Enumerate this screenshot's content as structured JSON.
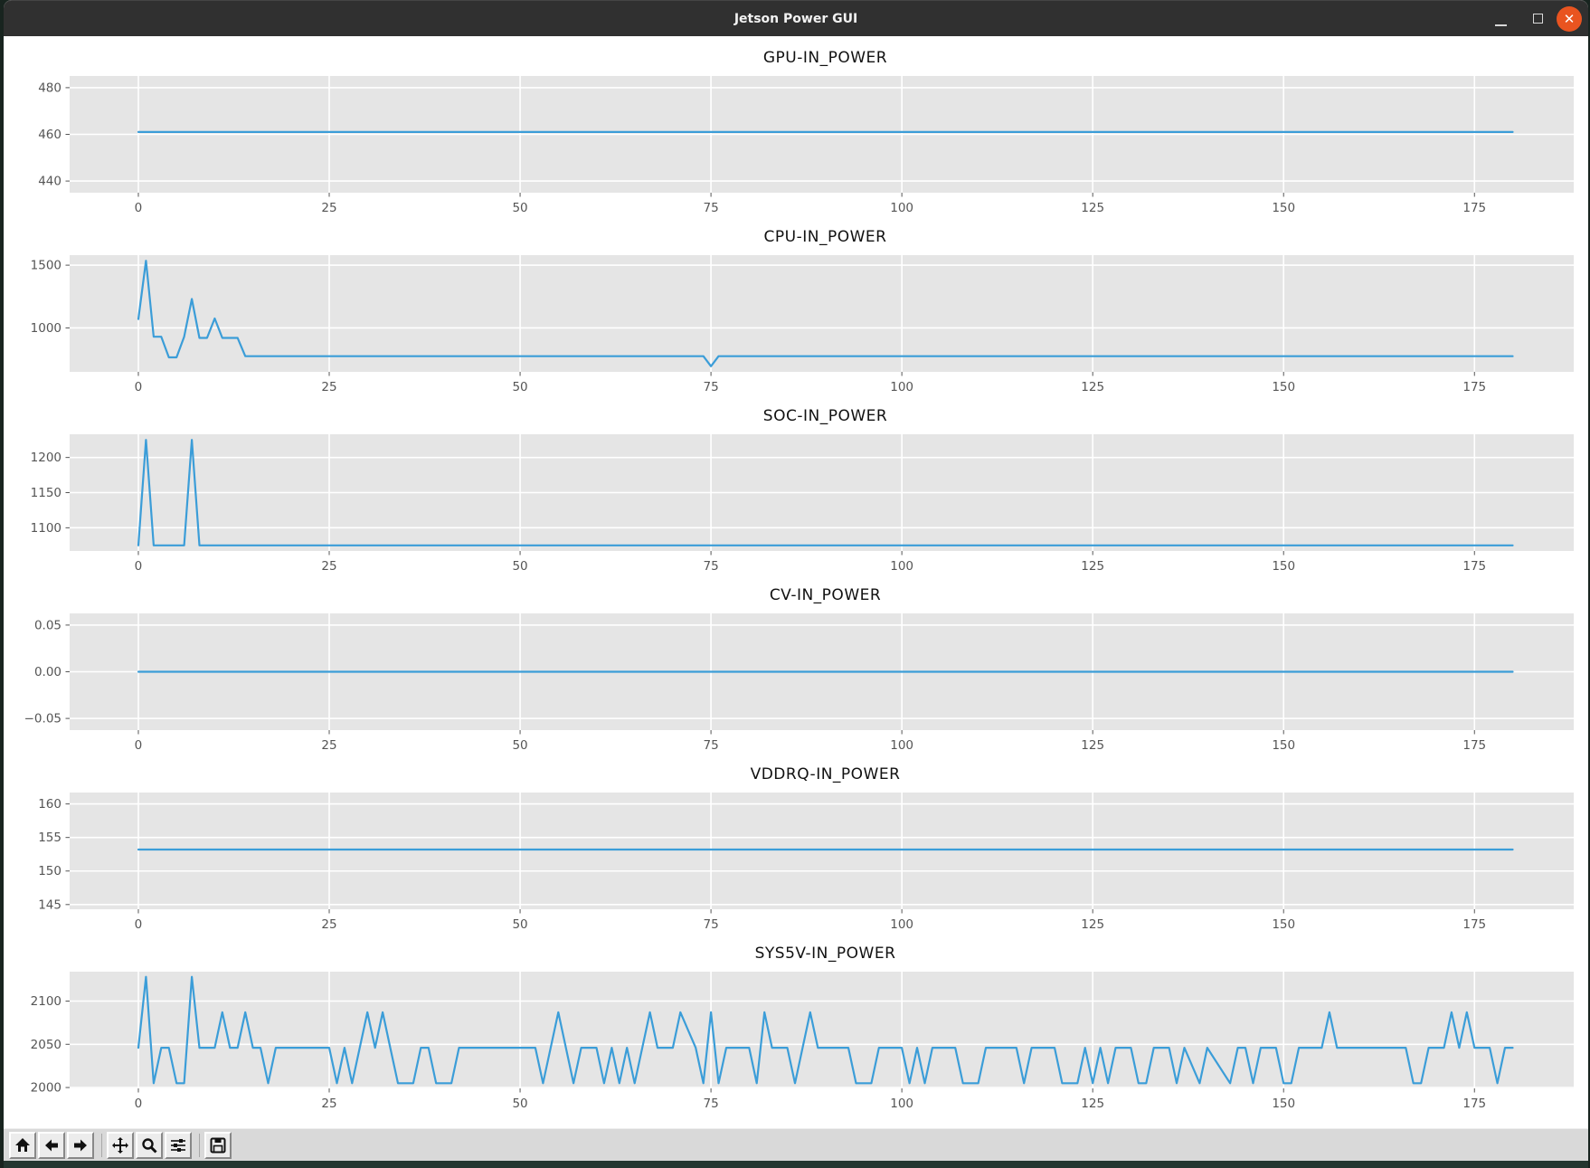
{
  "window": {
    "title": "Jetson Power GUI",
    "controls": {
      "minimize": "minimize-icon",
      "maximize": "maximize-icon",
      "close": "close-icon",
      "close_glyph": "✕"
    }
  },
  "colors": {
    "titlebar_bg": "#303030",
    "close_button": "#E95420",
    "figure_bg": "#ffffff",
    "axes_bg": "#e5e5e5",
    "grid": "#ffffff",
    "line": "#3b9dd8",
    "tick_text": "#555555",
    "toolbar_bg": "#d9d9d9"
  },
  "toolbar": {
    "buttons": [
      "home-icon",
      "back-arrow-icon",
      "forward-arrow-icon",
      "pan-move-icon",
      "zoom-magnifier-icon",
      "configure-subplots-icon",
      "save-floppy-icon"
    ]
  },
  "chart_data": [
    {
      "type": "line",
      "title": "GPU-IN_POWER",
      "x": [
        0,
        180
      ],
      "y": [
        461,
        461
      ],
      "xlim": [
        -9,
        188
      ],
      "ylim": [
        435,
        485
      ],
      "xticks": [
        0,
        25,
        50,
        75,
        100,
        125,
        150,
        175
      ],
      "xtick_labels": [
        "0",
        "25",
        "50",
        "75",
        "100",
        "125",
        "150",
        "175"
      ],
      "ytick_vals": [
        440,
        460,
        480
      ],
      "ytick_labels": [
        "440",
        "460",
        "480"
      ],
      "grid": true,
      "legend": "none"
    },
    {
      "type": "line",
      "title": "CPU-IN_POWER",
      "x": [
        0,
        1,
        2,
        3,
        4,
        5,
        6,
        7,
        8,
        9,
        10,
        11,
        13,
        14,
        74,
        75,
        76,
        180
      ],
      "y": [
        1070,
        1535,
        930,
        930,
        765,
        765,
        930,
        1230,
        920,
        920,
        1075,
        920,
        920,
        775,
        775,
        695,
        775,
        775
      ],
      "xlim": [
        -9,
        188
      ],
      "ylim": [
        650,
        1580
      ],
      "xticks": [
        0,
        25,
        50,
        75,
        100,
        125,
        150,
        175
      ],
      "xtick_labels": [
        "0",
        "25",
        "50",
        "75",
        "100",
        "125",
        "150",
        "175"
      ],
      "ytick_vals": [
        1000,
        1500
      ],
      "ytick_labels": [
        "1000",
        "1500"
      ],
      "grid": true,
      "legend": "none"
    },
    {
      "type": "line",
      "title": "SOC-IN_POWER",
      "x": [
        0,
        1,
        2,
        3,
        6,
        7,
        8,
        180
      ],
      "y": [
        1075,
        1225,
        1075,
        1075,
        1075,
        1225,
        1075,
        1075
      ],
      "xlim": [
        -9,
        188
      ],
      "ylim": [
        1067,
        1233
      ],
      "xticks": [
        0,
        25,
        50,
        75,
        100,
        125,
        150,
        175
      ],
      "xtick_labels": [
        "0",
        "25",
        "50",
        "75",
        "100",
        "125",
        "150",
        "175"
      ],
      "ytick_vals": [
        1100,
        1150,
        1200
      ],
      "ytick_labels": [
        "1100",
        "1150",
        "1200"
      ],
      "grid": true,
      "legend": "none"
    },
    {
      "type": "line",
      "title": "CV-IN_POWER",
      "x": [
        0,
        180
      ],
      "y": [
        0,
        0
      ],
      "xlim": [
        -9,
        188
      ],
      "ylim": [
        -0.0625,
        0.0625
      ],
      "xticks": [
        0,
        25,
        50,
        75,
        100,
        125,
        150,
        175
      ],
      "xtick_labels": [
        "0",
        "25",
        "50",
        "75",
        "100",
        "125",
        "150",
        "175"
      ],
      "ytick_vals": [
        -0.05,
        0,
        0.05
      ],
      "ytick_labels": [
        "−0.05",
        "0.00",
        "0.05"
      ],
      "grid": true,
      "legend": "none"
    },
    {
      "type": "line",
      "title": "VDDRQ-IN_POWER",
      "x": [
        0,
        180
      ],
      "y": [
        153.2,
        153.2
      ],
      "xlim": [
        -9,
        188
      ],
      "ylim": [
        144.3,
        161.7
      ],
      "xticks": [
        0,
        25,
        50,
        75,
        100,
        125,
        150,
        175
      ],
      "xtick_labels": [
        "0",
        "25",
        "50",
        "75",
        "100",
        "125",
        "150",
        "175"
      ],
      "ytick_vals": [
        145,
        150,
        155,
        160
      ],
      "ytick_labels": [
        "145",
        "150",
        "155",
        "160"
      ],
      "grid": true,
      "legend": "none"
    },
    {
      "type": "line",
      "title": "SYS5V-IN_POWER",
      "x": [
        0,
        1,
        2,
        3,
        4,
        5,
        6,
        7,
        8,
        10,
        11,
        12,
        13,
        14,
        15,
        16,
        17,
        18,
        25,
        26,
        27,
        28,
        30,
        31,
        32,
        33,
        34,
        36,
        37,
        38,
        39,
        41,
        42,
        52,
        53,
        55,
        57,
        58,
        60,
        61,
        62,
        63,
        64,
        65,
        67,
        68,
        70,
        71,
        73,
        74,
        75,
        76,
        77,
        80,
        81,
        82,
        83,
        85,
        86,
        88,
        89,
        93,
        94,
        96,
        97,
        100,
        101,
        102,
        103,
        104,
        107,
        108,
        110,
        111,
        115,
        116,
        117,
        120,
        121,
        123,
        124,
        125,
        126,
        127,
        128,
        130,
        131,
        132,
        133,
        135,
        136,
        137,
        139,
        140,
        143,
        144,
        145,
        146,
        147,
        149,
        150,
        151,
        152,
        155,
        156,
        157,
        159,
        166,
        167,
        168,
        169,
        171,
        172,
        173,
        174,
        175,
        177,
        178,
        179,
        180
      ],
      "y": [
        2046,
        2128,
        2005,
        2046,
        2046,
        2005,
        2005,
        2128,
        2046,
        2046,
        2087,
        2046,
        2046,
        2087,
        2046,
        2046,
        2005,
        2046,
        2046,
        2005,
        2046,
        2005,
        2087,
        2046,
        2087,
        2046,
        2005,
        2005,
        2046,
        2046,
        2005,
        2005,
        2046,
        2046,
        2005,
        2087,
        2005,
        2046,
        2046,
        2005,
        2046,
        2005,
        2046,
        2005,
        2087,
        2046,
        2046,
        2087,
        2046,
        2005,
        2087,
        2005,
        2046,
        2046,
        2005,
        2087,
        2046,
        2046,
        2005,
        2087,
        2046,
        2046,
        2005,
        2005,
        2046,
        2046,
        2005,
        2046,
        2005,
        2046,
        2046,
        2005,
        2005,
        2046,
        2046,
        2005,
        2046,
        2046,
        2005,
        2005,
        2046,
        2005,
        2046,
        2005,
        2046,
        2046,
        2005,
        2005,
        2046,
        2046,
        2005,
        2046,
        2005,
        2046,
        2005,
        2046,
        2046,
        2005,
        2046,
        2046,
        2005,
        2005,
        2046,
        2046,
        2087,
        2046,
        2046,
        2046,
        2005,
        2005,
        2046,
        2046,
        2087,
        2046,
        2087,
        2046,
        2046,
        2005,
        2046,
        2046
      ],
      "xlim": [
        -9,
        188
      ],
      "ylim": [
        1999,
        2134
      ],
      "xticks": [
        0,
        25,
        50,
        75,
        100,
        125,
        150,
        175
      ],
      "xtick_labels": [
        "0",
        "25",
        "50",
        "75",
        "100",
        "125",
        "150",
        "175"
      ],
      "ytick_vals": [
        2000,
        2050,
        2100
      ],
      "ytick_labels": [
        "2000",
        "2050",
        "2100"
      ],
      "grid": true,
      "legend": "none"
    }
  ]
}
